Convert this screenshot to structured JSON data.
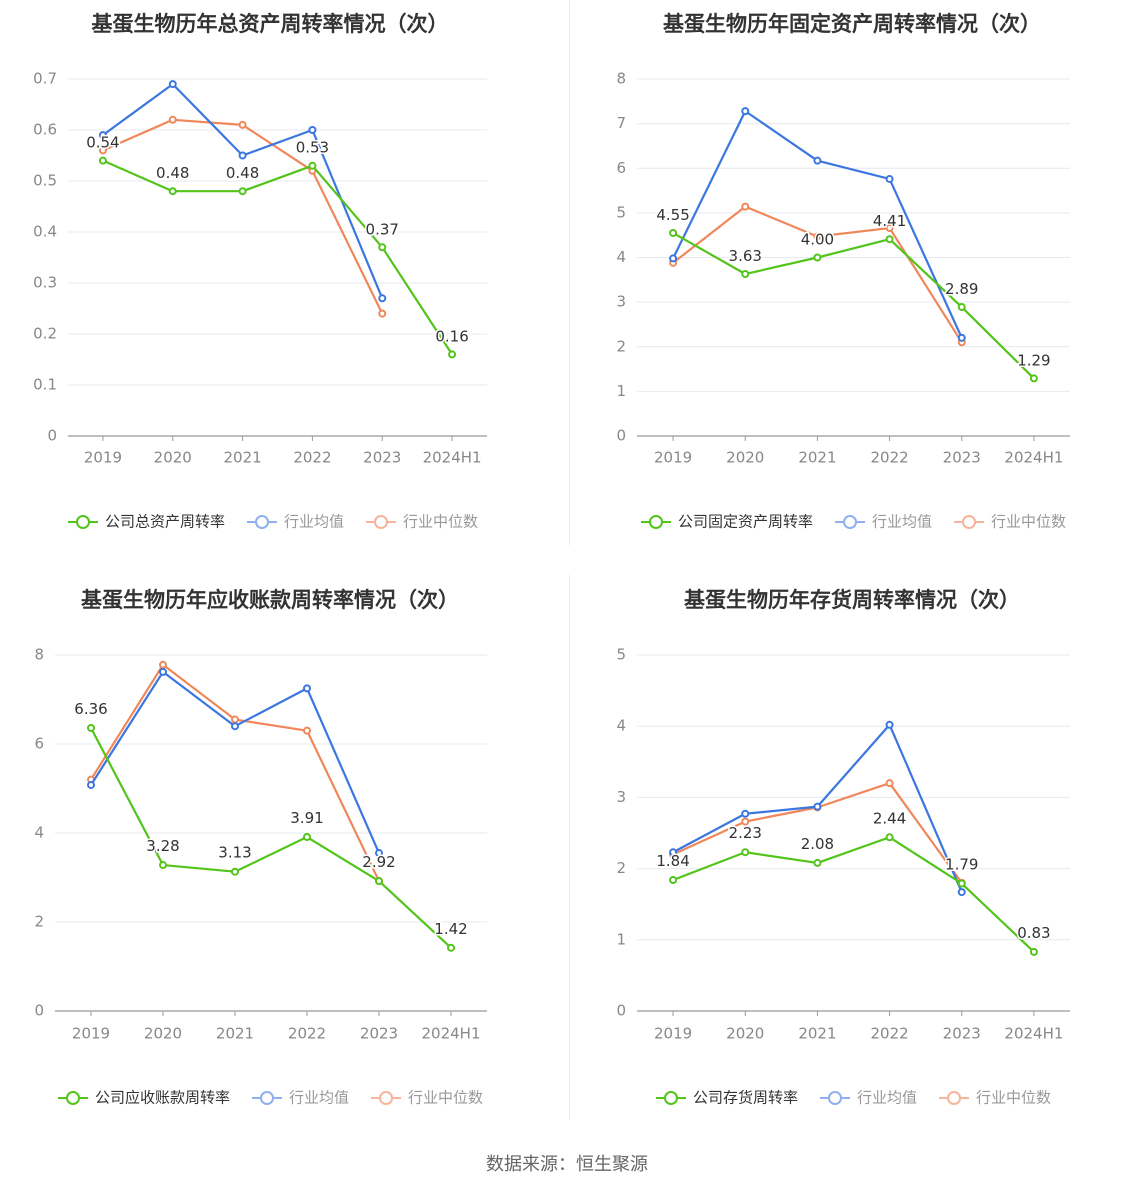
{
  "colors": {
    "company": "#52c41a",
    "industry_avg": "#3b76e1",
    "industry_median": "#f0875a",
    "grid": "#e6e9f0",
    "axis": "#999999",
    "tick_text": "#888888",
    "title": "#333333",
    "label_text": "#333333"
  },
  "source_text": "数据来源：恒生聚源",
  "chart_data": [
    {
      "type": "line",
      "title": "基蛋生物历年总资产周转率情况（次）",
      "categories": [
        "2019",
        "2020",
        "2021",
        "2022",
        "2023",
        "2024H1"
      ],
      "ylim": [
        0,
        0.7
      ],
      "yticks": [
        "0",
        "0.1",
        "0.2",
        "0.3",
        "0.4",
        "0.5",
        "0.6",
        "0.7"
      ],
      "yticks_values": [
        0,
        0.1,
        0.2,
        0.3,
        0.4,
        0.5,
        0.6,
        0.7
      ],
      "series": [
        {
          "key": "company",
          "name": "公司总资产周转率",
          "values": [
            0.54,
            0.48,
            0.48,
            0.53,
            0.37,
            0.16
          ],
          "labels": [
            "0.54",
            "0.48",
            "0.48",
            "0.53",
            "0.37",
            "0.16"
          ]
        },
        {
          "key": "industry_avg",
          "name": "行业均值",
          "values": [
            0.59,
            0.69,
            0.55,
            0.6,
            0.27,
            null
          ]
        },
        {
          "key": "industry_median",
          "name": "行业中位数",
          "values": [
            0.56,
            0.62,
            0.61,
            0.52,
            0.24,
            null
          ]
        }
      ]
    },
    {
      "type": "line",
      "title": "基蛋生物历年固定资产周转率情况（次）",
      "categories": [
        "2019",
        "2020",
        "2021",
        "2022",
        "2023",
        "2024H1"
      ],
      "ylim": [
        0,
        8
      ],
      "yticks": [
        "0",
        "1",
        "2",
        "3",
        "4",
        "5",
        "6",
        "7",
        "8"
      ],
      "yticks_values": [
        0,
        1,
        2,
        3,
        4,
        5,
        6,
        7,
        8
      ],
      "series": [
        {
          "key": "company",
          "name": "公司固定资产周转率",
          "values": [
            4.55,
            3.63,
            4.0,
            4.41,
            2.89,
            1.29
          ],
          "labels": [
            "4.55",
            "3.63",
            "4.00",
            "4.41",
            "2.89",
            "1.29"
          ]
        },
        {
          "key": "industry_avg",
          "name": "行业均值",
          "values": [
            3.98,
            7.28,
            6.17,
            5.76,
            2.2,
            null
          ]
        },
        {
          "key": "industry_median",
          "name": "行业中位数",
          "values": [
            3.88,
            5.14,
            4.47,
            4.66,
            2.1,
            null
          ]
        }
      ]
    },
    {
      "type": "line",
      "title": "基蛋生物历年应收账款周转率情况（次）",
      "categories": [
        "2019",
        "2020",
        "2021",
        "2022",
        "2023",
        "2024H1"
      ],
      "ylim": [
        0,
        8
      ],
      "yticks": [
        "0",
        "2",
        "4",
        "6",
        "8"
      ],
      "yticks_values": [
        0,
        2,
        4,
        6,
        8
      ],
      "series": [
        {
          "key": "company",
          "name": "公司应收账款周转率",
          "values": [
            6.36,
            3.28,
            3.13,
            3.91,
            2.92,
            1.42
          ],
          "labels": [
            "6.36",
            "3.28",
            "3.13",
            "3.91",
            "2.92",
            "1.42"
          ]
        },
        {
          "key": "industry_avg",
          "name": "行业均值",
          "values": [
            5.08,
            7.62,
            6.4,
            7.25,
            3.55,
            null
          ]
        },
        {
          "key": "industry_median",
          "name": "行业中位数",
          "values": [
            5.2,
            7.78,
            6.55,
            6.3,
            2.92,
            null
          ]
        }
      ]
    },
    {
      "type": "line",
      "title": "基蛋生物历年存货周转率情况（次）",
      "categories": [
        "2019",
        "2020",
        "2021",
        "2022",
        "2023",
        "2024H1"
      ],
      "ylim": [
        0,
        5
      ],
      "yticks": [
        "0",
        "1",
        "2",
        "3",
        "4",
        "5"
      ],
      "yticks_values": [
        0,
        1,
        2,
        3,
        4,
        5
      ],
      "series": [
        {
          "key": "company",
          "name": "公司存货周转率",
          "values": [
            1.84,
            2.23,
            2.08,
            2.44,
            1.79,
            0.83
          ],
          "labels": [
            "1.84",
            "2.23",
            "2.08",
            "2.44",
            "1.79",
            "0.83"
          ]
        },
        {
          "key": "industry_avg",
          "name": "行业均值",
          "values": [
            2.23,
            2.77,
            2.87,
            4.02,
            1.67,
            null
          ]
        },
        {
          "key": "industry_median",
          "name": "行业中位数",
          "values": [
            2.2,
            2.66,
            2.86,
            3.2,
            1.8,
            null
          ]
        }
      ]
    }
  ]
}
